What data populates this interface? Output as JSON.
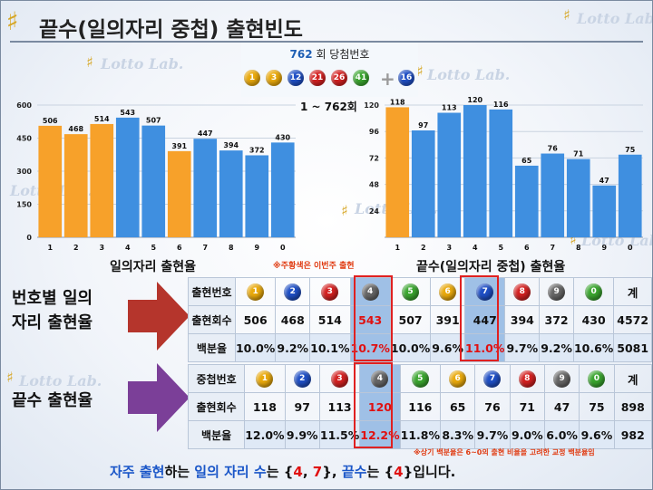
{
  "title": "끝수(일의자리 중첩) 출현빈도",
  "watermark": "Lotto Lab.",
  "draw": {
    "round": "762",
    "label": "회 당첨번호",
    "numbers": [
      1,
      3,
      12,
      21,
      26,
      41
    ],
    "bonus": 16,
    "range": "1 ~ 762회"
  },
  "colors": {
    "orange": "#f7a12a",
    "blue": "#3f8fe0",
    "ball_yellow": "#e9a90c",
    "ball_blue": "#1f4fc4",
    "ball_red": "#d32121",
    "ball_gray": "#666666",
    "ball_green": "#3aa52f",
    "arrow_red": "#b5352c",
    "arrow_purple": "#7b3f98"
  },
  "chart_data": [
    {
      "type": "bar",
      "categories": [
        "1",
        "2",
        "3",
        "4",
        "5",
        "6",
        "7",
        "8",
        "9",
        "0"
      ],
      "values": [
        506,
        468,
        514,
        543,
        507,
        391,
        447,
        394,
        372,
        430
      ],
      "highlight": [
        "orange",
        "orange",
        "orange",
        "blue",
        "blue",
        "orange",
        "blue",
        "blue",
        "blue",
        "blue"
      ],
      "yticks": [
        "600",
        "450",
        "300",
        "150",
        "0"
      ],
      "ylim": [
        0,
        600
      ],
      "grid": true,
      "caption": "일의자리 출현율"
    },
    {
      "type": "bar",
      "categories": [
        "1",
        "2",
        "3",
        "4",
        "5",
        "6",
        "7",
        "8",
        "9",
        "0"
      ],
      "values": [
        118,
        97,
        113,
        120,
        116,
        65,
        76,
        71,
        47,
        75
      ],
      "highlight": [
        "orange",
        "blue",
        "blue",
        "blue",
        "blue",
        "blue",
        "blue",
        "blue",
        "blue",
        "blue"
      ],
      "yticks": [
        "120",
        "96",
        "72",
        "48",
        "24"
      ],
      "ylim": [
        0,
        120
      ],
      "grid": true,
      "caption": "끝수(일의자리 중첩) 출현율"
    }
  ],
  "note_top": "※주황색은 이번주 출현",
  "side_labels": {
    "first": [
      "번호별 일의",
      "자리 출현율"
    ],
    "second": "끝수 출현율"
  },
  "table1": {
    "header_label": "출현번호",
    "balls": [
      "1",
      "2",
      "3",
      "4",
      "5",
      "6",
      "7",
      "8",
      "9",
      "0"
    ],
    "total_label": "계",
    "count_label": "출현회수",
    "counts": [
      "506",
      "468",
      "514",
      "543",
      "507",
      "391",
      "447",
      "394",
      "372",
      "430",
      "4572"
    ],
    "pct_label": "백분율",
    "pcts": [
      "10.0%",
      "9.2%",
      "10.1%",
      "10.7%",
      "10.0%",
      "9.6%",
      "11.0%",
      "9.7%",
      "9.2%",
      "10.6%",
      "5081"
    ]
  },
  "table2": {
    "header_label": "중첩번호",
    "balls": [
      "1",
      "2",
      "3",
      "4",
      "5",
      "6",
      "7",
      "8",
      "9",
      "0"
    ],
    "total_label": "계",
    "count_label": "출현회수",
    "counts": [
      "118",
      "97",
      "113",
      "120",
      "116",
      "65",
      "76",
      "71",
      "47",
      "75",
      "898"
    ],
    "pct_label": "백분율",
    "pcts": [
      "12.0%",
      "9.9%",
      "11.5%",
      "12.2%",
      "11.8%",
      "8.3%",
      "9.7%",
      "9.0%",
      "6.0%",
      "9.6%",
      "982"
    ]
  },
  "note_bottom": "※상기 백분율은 6~0의 출현 비율을 고려한 교정 백분율임",
  "summary": {
    "p1": "자주 출현",
    "p2": "하는 ",
    "p3": "일의 자리 수",
    "p4": "는  {",
    "p5": "4",
    "p6": ", ",
    "p7": "7",
    "p8": "}, ",
    "p9": "끝수",
    "p10": "는 {",
    "p11": "4",
    "p12": "}입니다."
  }
}
